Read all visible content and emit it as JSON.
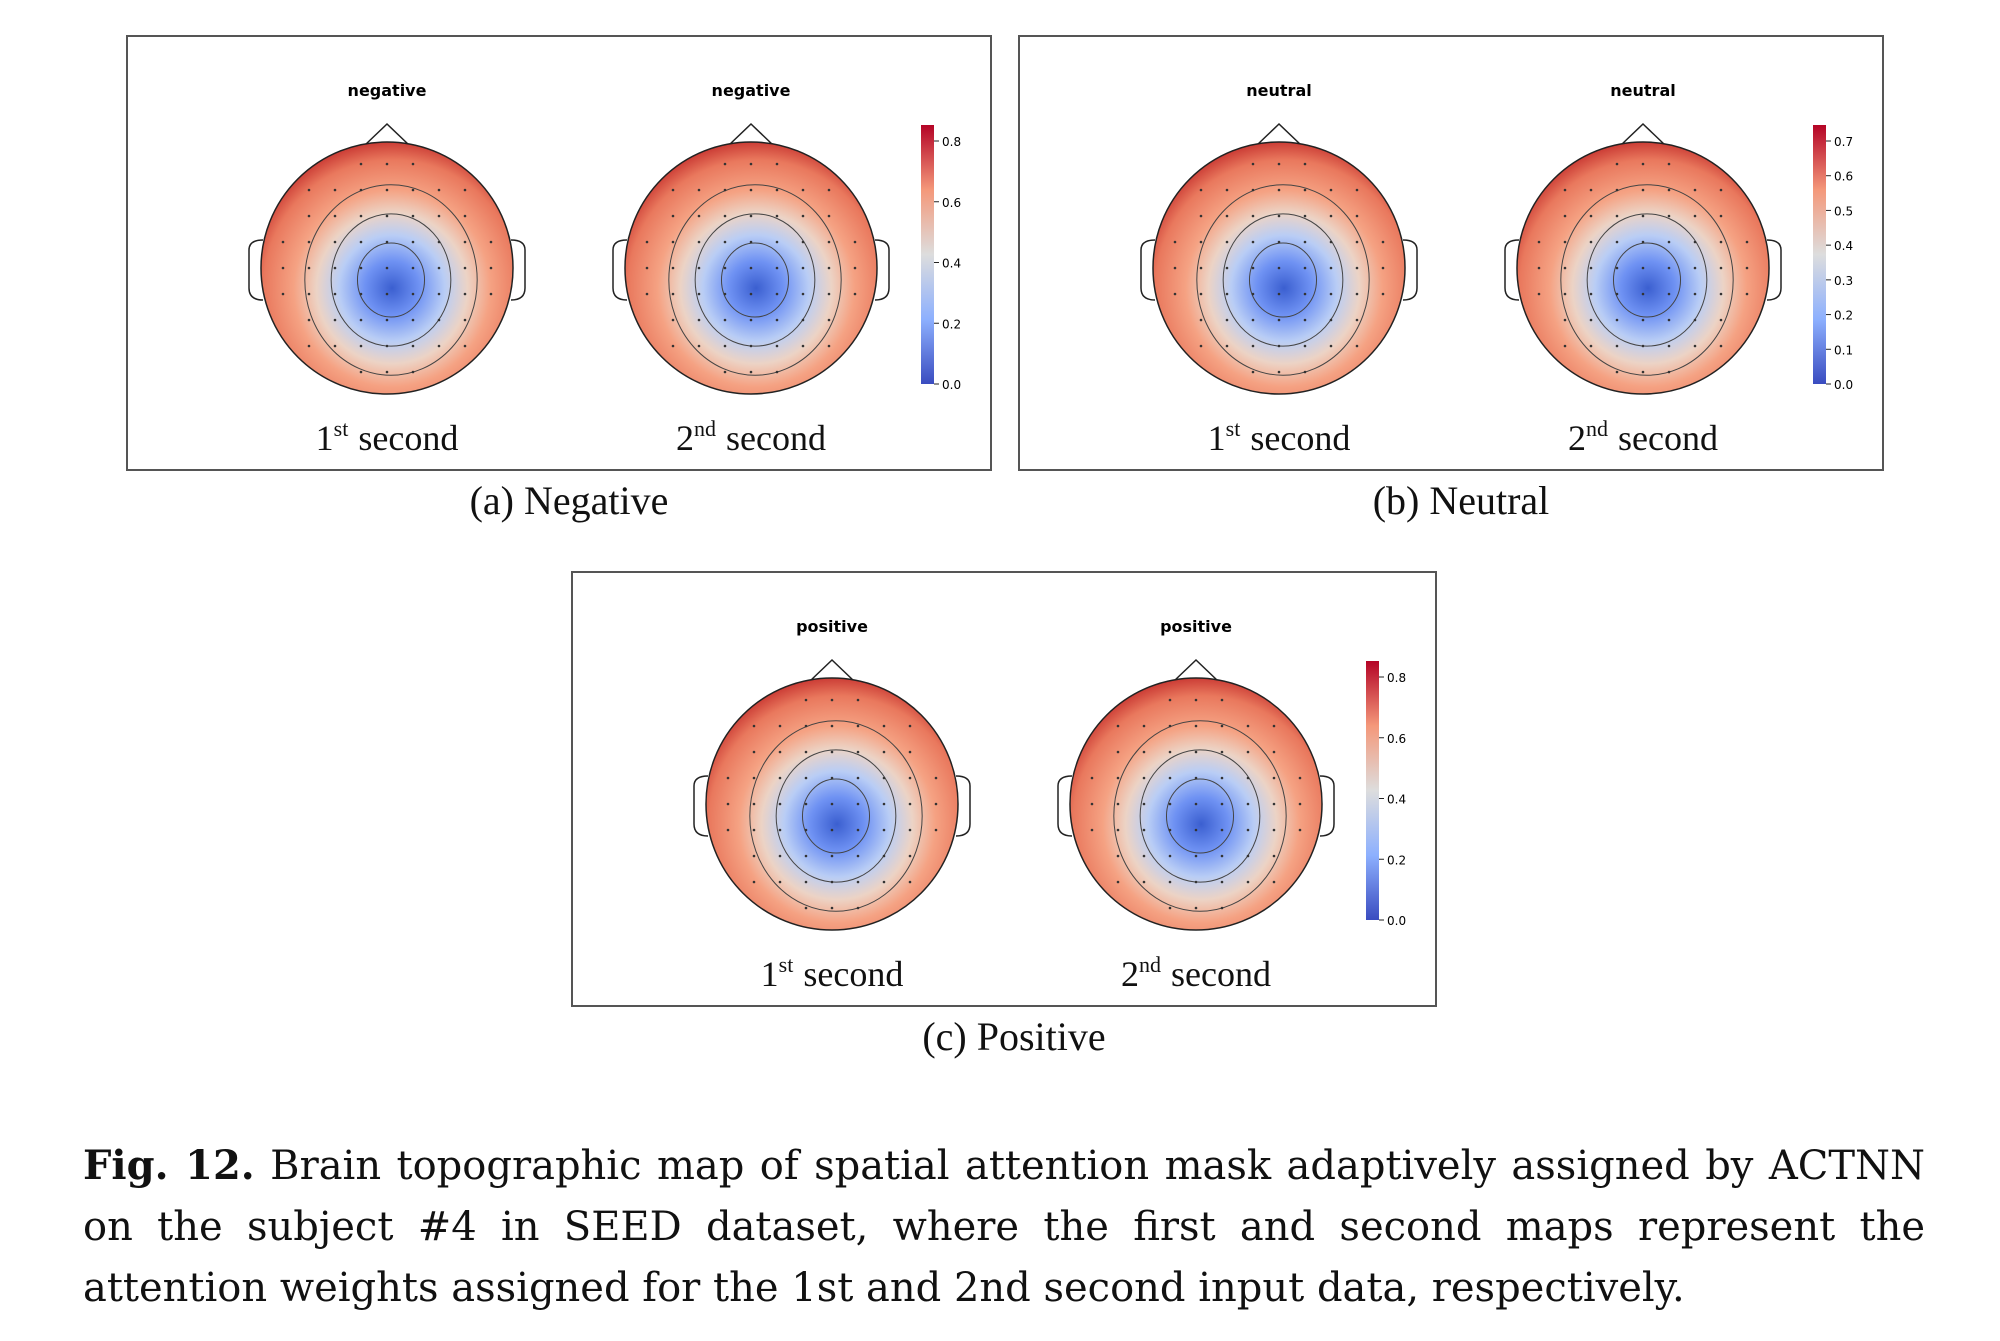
{
  "panels": [
    {
      "title": "negative",
      "caption": "(a) Negative",
      "maps": [
        {
          "number": "1",
          "ordinal": "st",
          "word": "second"
        },
        {
          "number": "2",
          "ordinal": "nd",
          "word": "second"
        }
      ],
      "colorbar_ticks": [
        "0.0",
        "0.2",
        "0.4",
        "0.6",
        "0.8"
      ]
    },
    {
      "title": "neutral",
      "caption": "(b) Neutral",
      "maps": [
        {
          "number": "1",
          "ordinal": "st",
          "word": "second"
        },
        {
          "number": "2",
          "ordinal": "nd",
          "word": "second"
        }
      ],
      "colorbar_ticks": [
        "0.0",
        "0.1",
        "0.2",
        "0.3",
        "0.4",
        "0.5",
        "0.6",
        "0.7"
      ]
    },
    {
      "title": "positive",
      "caption": "(c) Positive",
      "maps": [
        {
          "number": "1",
          "ordinal": "st",
          "word": "second"
        },
        {
          "number": "2",
          "ordinal": "nd",
          "word": "second"
        }
      ],
      "colorbar_ticks": [
        "0.0",
        "0.2",
        "0.4",
        "0.6",
        "0.8"
      ]
    }
  ],
  "figure_caption": {
    "label": "Fig. 12.",
    "text": "Brain topographic map of spatial attention mask adaptively assigned by ACTNN on the subject #4 in SEED dataset, where the first and second maps represent the attention weights assigned for the 1st and 2nd second input data, respectively."
  }
}
